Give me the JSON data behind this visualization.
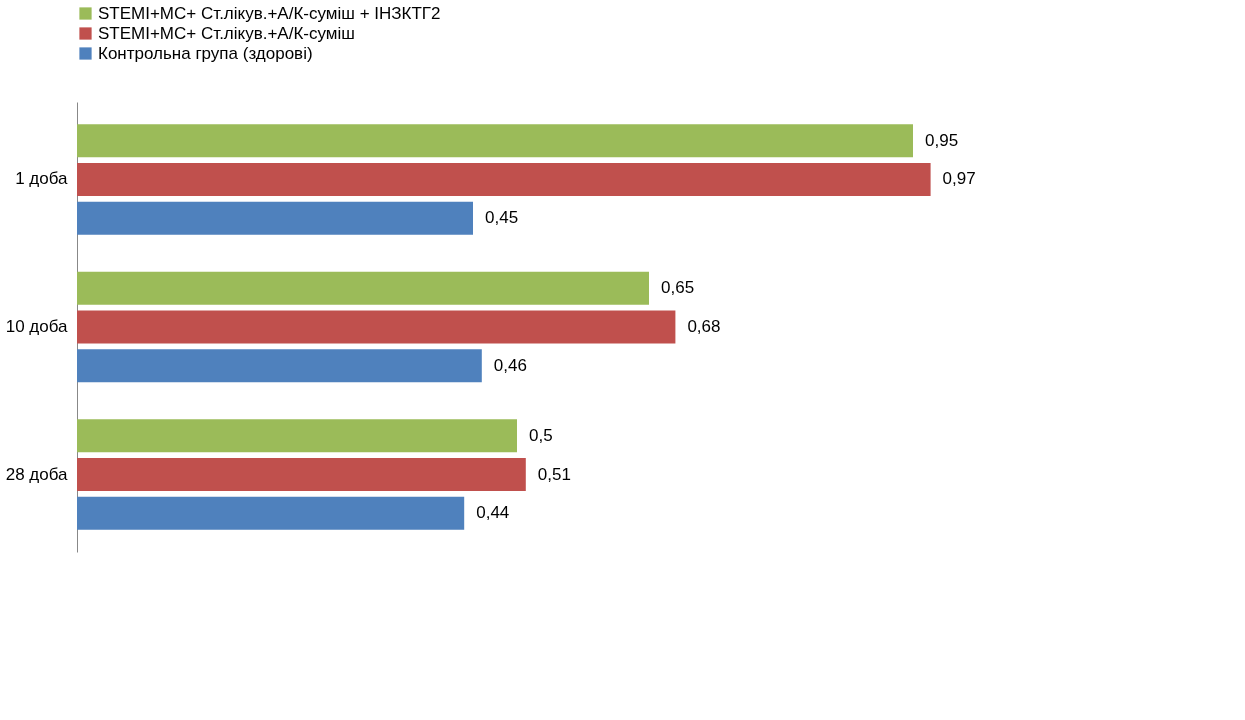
{
  "chart_data": {
    "type": "bar",
    "orientation": "horizontal",
    "categories": [
      "1 доба",
      "10 доба",
      "28 доба"
    ],
    "series": [
      {
        "name": "STEMI+MC+ Ст.лікув.+А/К-суміш + ІНЗКТГ2",
        "color": "#9bbb59",
        "values": [
          0.95,
          0.65,
          0.5
        ],
        "value_labels": [
          "0,95",
          "0,65",
          "0,5"
        ]
      },
      {
        "name": "STEMI+MC+ Ст.лікув.+А/К-суміш",
        "color": "#c0504d",
        "values": [
          0.97,
          0.68,
          0.51
        ],
        "value_labels": [
          "0,97",
          "0,68",
          "0,51"
        ]
      },
      {
        "name": "Контрольна група (здорові)",
        "color": "#4f81bd",
        "values": [
          0.45,
          0.46,
          0.44
        ],
        "value_labels": [
          "0,45",
          "0,46",
          "0,44"
        ]
      }
    ],
    "legend": "top",
    "grid": false
  }
}
